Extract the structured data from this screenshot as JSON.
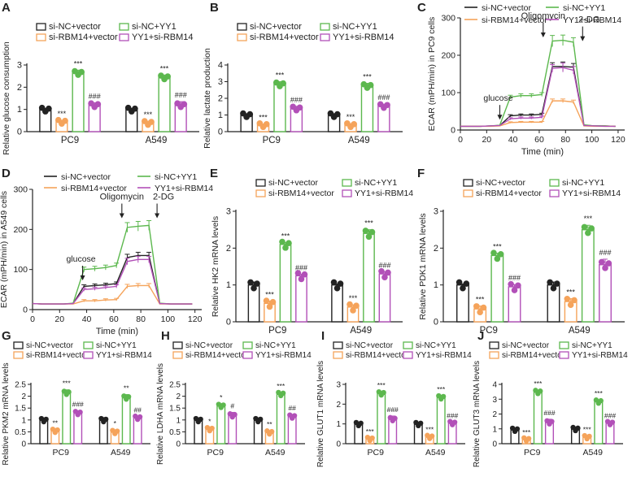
{
  "colors": {
    "si-NC+vector": "#222222",
    "si-RBM14+vector": "#f5a35a",
    "si-NC+YY1": "#5cb84e",
    "YY1+si-RBM14": "#b250b8"
  },
  "chart_data": [
    {
      "panel": "A",
      "type": "bar",
      "ylabel": "Relative glucose consumption",
      "ylim": [
        0,
        3
      ],
      "yticks": [
        0,
        1,
        2,
        3
      ],
      "categories": [
        "PC9",
        "A549"
      ],
      "legend": [
        "si-NC+vector",
        "si-RBM14+vector",
        "si-NC+YY1",
        "YY1+si-RBM14"
      ],
      "series": [
        {
          "name": "si-NC+vector",
          "values": [
            1.0,
            1.0
          ],
          "errors": [
            0.05,
            0.05
          ],
          "sig": [
            "",
            ""
          ]
        },
        {
          "name": "si-RBM14+vector",
          "values": [
            0.45,
            0.4
          ],
          "errors": [
            0.06,
            0.07
          ],
          "sig": [
            "***",
            "***"
          ]
        },
        {
          "name": "si-NC+YY1",
          "values": [
            2.65,
            2.45
          ],
          "errors": [
            0.12,
            0.1
          ],
          "sig": [
            "***",
            "***"
          ]
        },
        {
          "name": "YY1+si-RBM14",
          "values": [
            1.2,
            1.2
          ],
          "errors": [
            0.1,
            0.15
          ],
          "sig": [
            "###",
            "###"
          ]
        }
      ]
    },
    {
      "panel": "B",
      "type": "bar",
      "ylabel": "Relative lactate production",
      "ylim": [
        0,
        4
      ],
      "yticks": [
        0,
        1,
        2,
        3,
        4
      ],
      "categories": [
        "PC9",
        "A549"
      ],
      "legend": [
        "si-NC+vector",
        "si-RBM14+vector",
        "si-NC+YY1",
        "YY1+si-RBM14"
      ],
      "series": [
        {
          "name": "si-NC+vector",
          "values": [
            1.0,
            1.0
          ],
          "errors": [
            0.08,
            0.08
          ],
          "sig": [
            "",
            ""
          ]
        },
        {
          "name": "si-RBM14+vector",
          "values": [
            0.4,
            0.4
          ],
          "errors": [
            0.06,
            0.08
          ],
          "sig": [
            "***",
            "***"
          ]
        },
        {
          "name": "si-NC+YY1",
          "values": [
            2.85,
            2.75
          ],
          "errors": [
            0.15,
            0.15
          ],
          "sig": [
            "***",
            "***"
          ]
        },
        {
          "name": "YY1+si-RBM14",
          "values": [
            1.4,
            1.55
          ],
          "errors": [
            0.12,
            0.1
          ],
          "sig": [
            "###",
            "###"
          ]
        }
      ]
    },
    {
      "panel": "C",
      "type": "line",
      "ylabel": "ECAR (mPH/min) in PC9 cells",
      "xlabel": "Time (min)",
      "xlim": [
        0,
        125
      ],
      "xticks": [
        0,
        20,
        40,
        60,
        80,
        100,
        120
      ],
      "ylim": [
        0,
        300
      ],
      "yticks": [
        0,
        100,
        200,
        300
      ],
      "annotations": [
        {
          "label": "glucose",
          "x": 30,
          "y": 30
        },
        {
          "label": "Oligomycin",
          "x": 63,
          "y": 250
        },
        {
          "label": "2-DG",
          "x": 93,
          "y": 240
        }
      ],
      "legend": [
        "si-NC+vector",
        "si-NC+YY1",
        "si-RBM14+vector",
        "YY1+si-RBM14"
      ],
      "x": [
        0,
        7,
        15,
        23,
        30,
        38,
        46,
        54,
        62,
        70,
        78,
        86,
        94,
        102,
        110,
        118
      ],
      "series": [
        {
          "name": "si-NC+vector",
          "values": [
            10,
            10,
            10,
            11,
            12,
            38,
            40,
            40,
            42,
            170,
            170,
            168,
            13,
            11,
            11,
            10
          ],
          "errors": [
            0,
            0,
            0,
            0,
            0,
            3,
            3,
            3,
            3,
            10,
            12,
            10,
            0,
            0,
            0,
            0
          ]
        },
        {
          "name": "si-NC+YY1",
          "values": [
            10,
            10,
            10,
            11,
            13,
            88,
            92,
            92,
            95,
            238,
            240,
            235,
            14,
            11,
            11,
            10
          ],
          "errors": [
            0,
            0,
            0,
            0,
            0,
            5,
            5,
            5,
            5,
            15,
            14,
            12,
            0,
            0,
            0,
            0
          ]
        },
        {
          "name": "si-RBM14+vector",
          "values": [
            10,
            10,
            10,
            10,
            11,
            20,
            21,
            21,
            21,
            78,
            78,
            75,
            11,
            10,
            10,
            10
          ],
          "errors": [
            0,
            0,
            0,
            0,
            0,
            2,
            2,
            2,
            2,
            5,
            5,
            5,
            0,
            0,
            0,
            0
          ]
        },
        {
          "name": "YY1+si-RBM14",
          "values": [
            10,
            10,
            10,
            11,
            12,
            30,
            32,
            32,
            34,
            165,
            167,
            160,
            12,
            11,
            10,
            10
          ],
          "errors": [
            0,
            0,
            0,
            0,
            0,
            3,
            3,
            3,
            3,
            10,
            12,
            10,
            0,
            0,
            0,
            0
          ]
        }
      ]
    },
    {
      "panel": "D",
      "type": "line",
      "ylabel": "ECAR (mPH/min) in A549 cells",
      "xlabel": "Time (min)",
      "xlim": [
        0,
        125
      ],
      "xticks": [
        0,
        20,
        40,
        60,
        80,
        100,
        120
      ],
      "ylim": [
        0,
        300
      ],
      "yticks": [
        0,
        100,
        200,
        300
      ],
      "annotations": [
        {
          "label": "glucose",
          "x": 37,
          "y": 75
        },
        {
          "label": "Oligomycin",
          "x": 66,
          "y": 230
        },
        {
          "label": "2-DG",
          "x": 92,
          "y": 230
        }
      ],
      "legend": [
        "si-NC+vector",
        "si-NC+YY1",
        "si-RBM14+vector",
        "YY1+si-RBM14"
      ],
      "x": [
        0,
        7,
        15,
        23,
        30,
        38,
        46,
        54,
        62,
        70,
        78,
        86,
        94,
        102,
        110,
        118
      ],
      "series": [
        {
          "name": "si-NC+vector",
          "values": [
            15,
            14,
            14,
            14,
            15,
            58,
            60,
            62,
            65,
            130,
            135,
            135,
            15,
            14,
            14,
            14
          ],
          "errors": [
            0,
            0,
            0,
            0,
            0,
            4,
            4,
            4,
            4,
            8,
            8,
            8,
            0,
            0,
            0,
            0
          ]
        },
        {
          "name": "si-NC+YY1",
          "values": [
            15,
            14,
            14,
            14,
            16,
            100,
            102,
            105,
            110,
            205,
            208,
            210,
            16,
            14,
            14,
            14
          ],
          "errors": [
            0,
            0,
            0,
            0,
            0,
            6,
            6,
            6,
            6,
            12,
            12,
            12,
            0,
            0,
            0,
            0
          ]
        },
        {
          "name": "si-RBM14+vector",
          "values": [
            15,
            14,
            14,
            14,
            14,
            22,
            22,
            24,
            25,
            58,
            60,
            60,
            14,
            14,
            14,
            14
          ],
          "errors": [
            0,
            0,
            0,
            0,
            0,
            3,
            3,
            3,
            3,
            5,
            5,
            5,
            0,
            0,
            0,
            0
          ]
        },
        {
          "name": "YY1+si-RBM14",
          "values": [
            15,
            14,
            14,
            14,
            15,
            50,
            52,
            55,
            58,
            120,
            125,
            125,
            15,
            14,
            14,
            14
          ],
          "errors": [
            0,
            0,
            0,
            0,
            0,
            4,
            4,
            4,
            4,
            8,
            8,
            8,
            0,
            0,
            0,
            0
          ]
        }
      ]
    },
    {
      "panel": "E",
      "type": "bar",
      "ylabel": "Relative HK2 mRNA levels",
      "ylim": [
        0,
        3
      ],
      "yticks": [
        0,
        1,
        2,
        3
      ],
      "categories": [
        "PC9",
        "A549"
      ],
      "legend": [
        "si-NC+vector",
        "si-RBM14+vector",
        "si-NC+YY1",
        "YY1+si-RBM14"
      ],
      "series": [
        {
          "name": "si-NC+vector",
          "values": [
            1.0,
            1.0
          ],
          "errors": [
            0.08,
            0.03
          ],
          "sig": [
            "",
            ""
          ]
        },
        {
          "name": "si-RBM14+vector",
          "values": [
            0.5,
            0.4
          ],
          "errors": [
            0.06,
            0.06
          ],
          "sig": [
            "***",
            "***"
          ]
        },
        {
          "name": "si-NC+YY1",
          "values": [
            2.1,
            2.4
          ],
          "errors": [
            0.05,
            0.1
          ],
          "sig": [
            "***",
            "***"
          ]
        },
        {
          "name": "YY1+si-RBM14",
          "values": [
            1.25,
            1.3
          ],
          "errors": [
            0.04,
            0.06
          ],
          "sig": [
            "###",
            "###"
          ]
        }
      ]
    },
    {
      "panel": "F",
      "type": "bar",
      "ylabel": "Relative PDK1 mRNA levels",
      "ylim": [
        0,
        3
      ],
      "yticks": [
        0,
        1,
        2,
        3
      ],
      "categories": [
        "PC9",
        "A549"
      ],
      "legend": [
        "si-NC+vector",
        "si-RBM14+vector",
        "si-NC+YY1",
        "YY1+si-RBM14"
      ],
      "series": [
        {
          "name": "si-NC+vector",
          "values": [
            1.0,
            1.0
          ],
          "errors": [
            0.03,
            0.08
          ],
          "sig": [
            "",
            ""
          ]
        },
        {
          "name": "si-RBM14+vector",
          "values": [
            0.35,
            0.55
          ],
          "errors": [
            0.08,
            0.08
          ],
          "sig": [
            "***",
            "***"
          ]
        },
        {
          "name": "si-NC+YY1",
          "values": [
            1.8,
            2.5
          ],
          "errors": [
            0.06,
            0.12
          ],
          "sig": [
            "***",
            "***"
          ]
        },
        {
          "name": "YY1+si-RBM14",
          "values": [
            0.95,
            1.55
          ],
          "errors": [
            0.06,
            0.15
          ],
          "sig": [
            "###",
            "###"
          ]
        }
      ]
    },
    {
      "panel": "G",
      "type": "bar",
      "ylabel": "Relative PKM2 mRNA levels",
      "ylim": [
        0,
        2.5
      ],
      "yticks": [
        0,
        0.5,
        1.0,
        1.5,
        2.0,
        2.5
      ],
      "categories": [
        "PC9",
        "A549"
      ],
      "legend": [
        "si-NC+vector",
        "si-RBM14+vector",
        "si-NC+YY1",
        "YY1+si-RBM14"
      ],
      "series": [
        {
          "name": "si-NC+vector",
          "values": [
            1.0,
            1.0
          ],
          "errors": [
            0.03,
            0.1
          ],
          "sig": [
            "",
            ""
          ]
        },
        {
          "name": "si-RBM14+vector",
          "values": [
            0.55,
            0.5
          ],
          "errors": [
            0.05,
            0.08
          ],
          "sig": [
            "**",
            "*"
          ]
        },
        {
          "name": "si-NC+YY1",
          "values": [
            2.15,
            1.95
          ],
          "errors": [
            0.12,
            0.12
          ],
          "sig": [
            "***",
            "**"
          ]
        },
        {
          "name": "YY1+si-RBM14",
          "values": [
            1.3,
            1.1
          ],
          "errors": [
            0.08,
            0.04
          ],
          "sig": [
            "###",
            "##"
          ]
        }
      ]
    },
    {
      "panel": "H",
      "type": "bar",
      "ylabel": "Relative LDHA mRNA levels",
      "ylim": [
        0,
        2.5
      ],
      "yticks": [
        0,
        0.5,
        1.0,
        1.5,
        2.0,
        2.5
      ],
      "categories": [
        "PC9",
        "A549"
      ],
      "legend": [
        "si-NC+vector",
        "si-RBM14+vector",
        "si-NC+YY1",
        "YY1+si-RBM14"
      ],
      "series": [
        {
          "name": "si-NC+vector",
          "values": [
            1.0,
            1.0
          ],
          "errors": [
            0.04,
            0.04
          ],
          "sig": [
            "",
            ""
          ]
        },
        {
          "name": "si-RBM14+vector",
          "values": [
            0.62,
            0.48
          ],
          "errors": [
            0.05,
            0.06
          ],
          "sig": [
            "*",
            "**"
          ]
        },
        {
          "name": "si-NC+YY1",
          "values": [
            1.6,
            2.1
          ],
          "errors": [
            0.08,
            0.06
          ],
          "sig": [
            "*",
            "***"
          ]
        },
        {
          "name": "YY1+si-RBM14",
          "values": [
            1.2,
            1.15
          ],
          "errors": [
            0.12,
            0.08
          ],
          "sig": [
            "#",
            "##"
          ]
        }
      ]
    },
    {
      "panel": "I",
      "type": "bar",
      "ylabel": "Relative GLUT1 mRNA levels",
      "ylim": [
        0,
        3
      ],
      "yticks": [
        0,
        1,
        2,
        3
      ],
      "categories": [
        "PC9",
        "A549"
      ],
      "legend": [
        "si-NC+vector",
        "si-RBM14+vector",
        "si-NC+YY1",
        "YY1+si-RBM14"
      ],
      "series": [
        {
          "name": "si-NC+vector",
          "values": [
            1.0,
            1.0
          ],
          "errors": [
            0.03,
            0.03
          ],
          "sig": [
            "",
            ""
          ]
        },
        {
          "name": "si-RBM14+vector",
          "values": [
            0.25,
            0.35
          ],
          "errors": [
            0.04,
            0.05
          ],
          "sig": [
            "***",
            "***"
          ]
        },
        {
          "name": "si-NC+YY1",
          "values": [
            2.55,
            2.35
          ],
          "errors": [
            0.08,
            0.08
          ],
          "sig": [
            "***",
            "***"
          ]
        },
        {
          "name": "YY1+si-RBM14",
          "values": [
            1.25,
            1.05
          ],
          "errors": [
            0.15,
            0.04
          ],
          "sig": [
            "###",
            "###"
          ]
        }
      ]
    },
    {
      "panel": "J",
      "type": "bar",
      "ylabel": "Relative GLUT3 mRNA levels",
      "ylim": [
        0,
        4
      ],
      "yticks": [
        0,
        1,
        2,
        3,
        4
      ],
      "categories": [
        "PC9",
        "A549"
      ],
      "legend": [
        "si-NC+vector",
        "si-RBM14+vector",
        "si-NC+YY1",
        "YY1+si-RBM14"
      ],
      "series": [
        {
          "name": "si-NC+vector",
          "values": [
            0.95,
            1.0
          ],
          "errors": [
            0.1,
            0.08
          ],
          "sig": [
            "",
            ""
          ]
        },
        {
          "name": "si-RBM14+vector",
          "values": [
            0.3,
            0.45
          ],
          "errors": [
            0.04,
            0.06
          ],
          "sig": [
            "***",
            "***"
          ]
        },
        {
          "name": "si-NC+YY1",
          "values": [
            3.5,
            2.85
          ],
          "errors": [
            0.12,
            0.1
          ],
          "sig": [
            "***",
            "***"
          ]
        },
        {
          "name": "YY1+si-RBM14",
          "values": [
            1.45,
            1.4
          ],
          "errors": [
            0.2,
            0.05
          ],
          "sig": [
            "###",
            "###"
          ]
        }
      ]
    }
  ]
}
